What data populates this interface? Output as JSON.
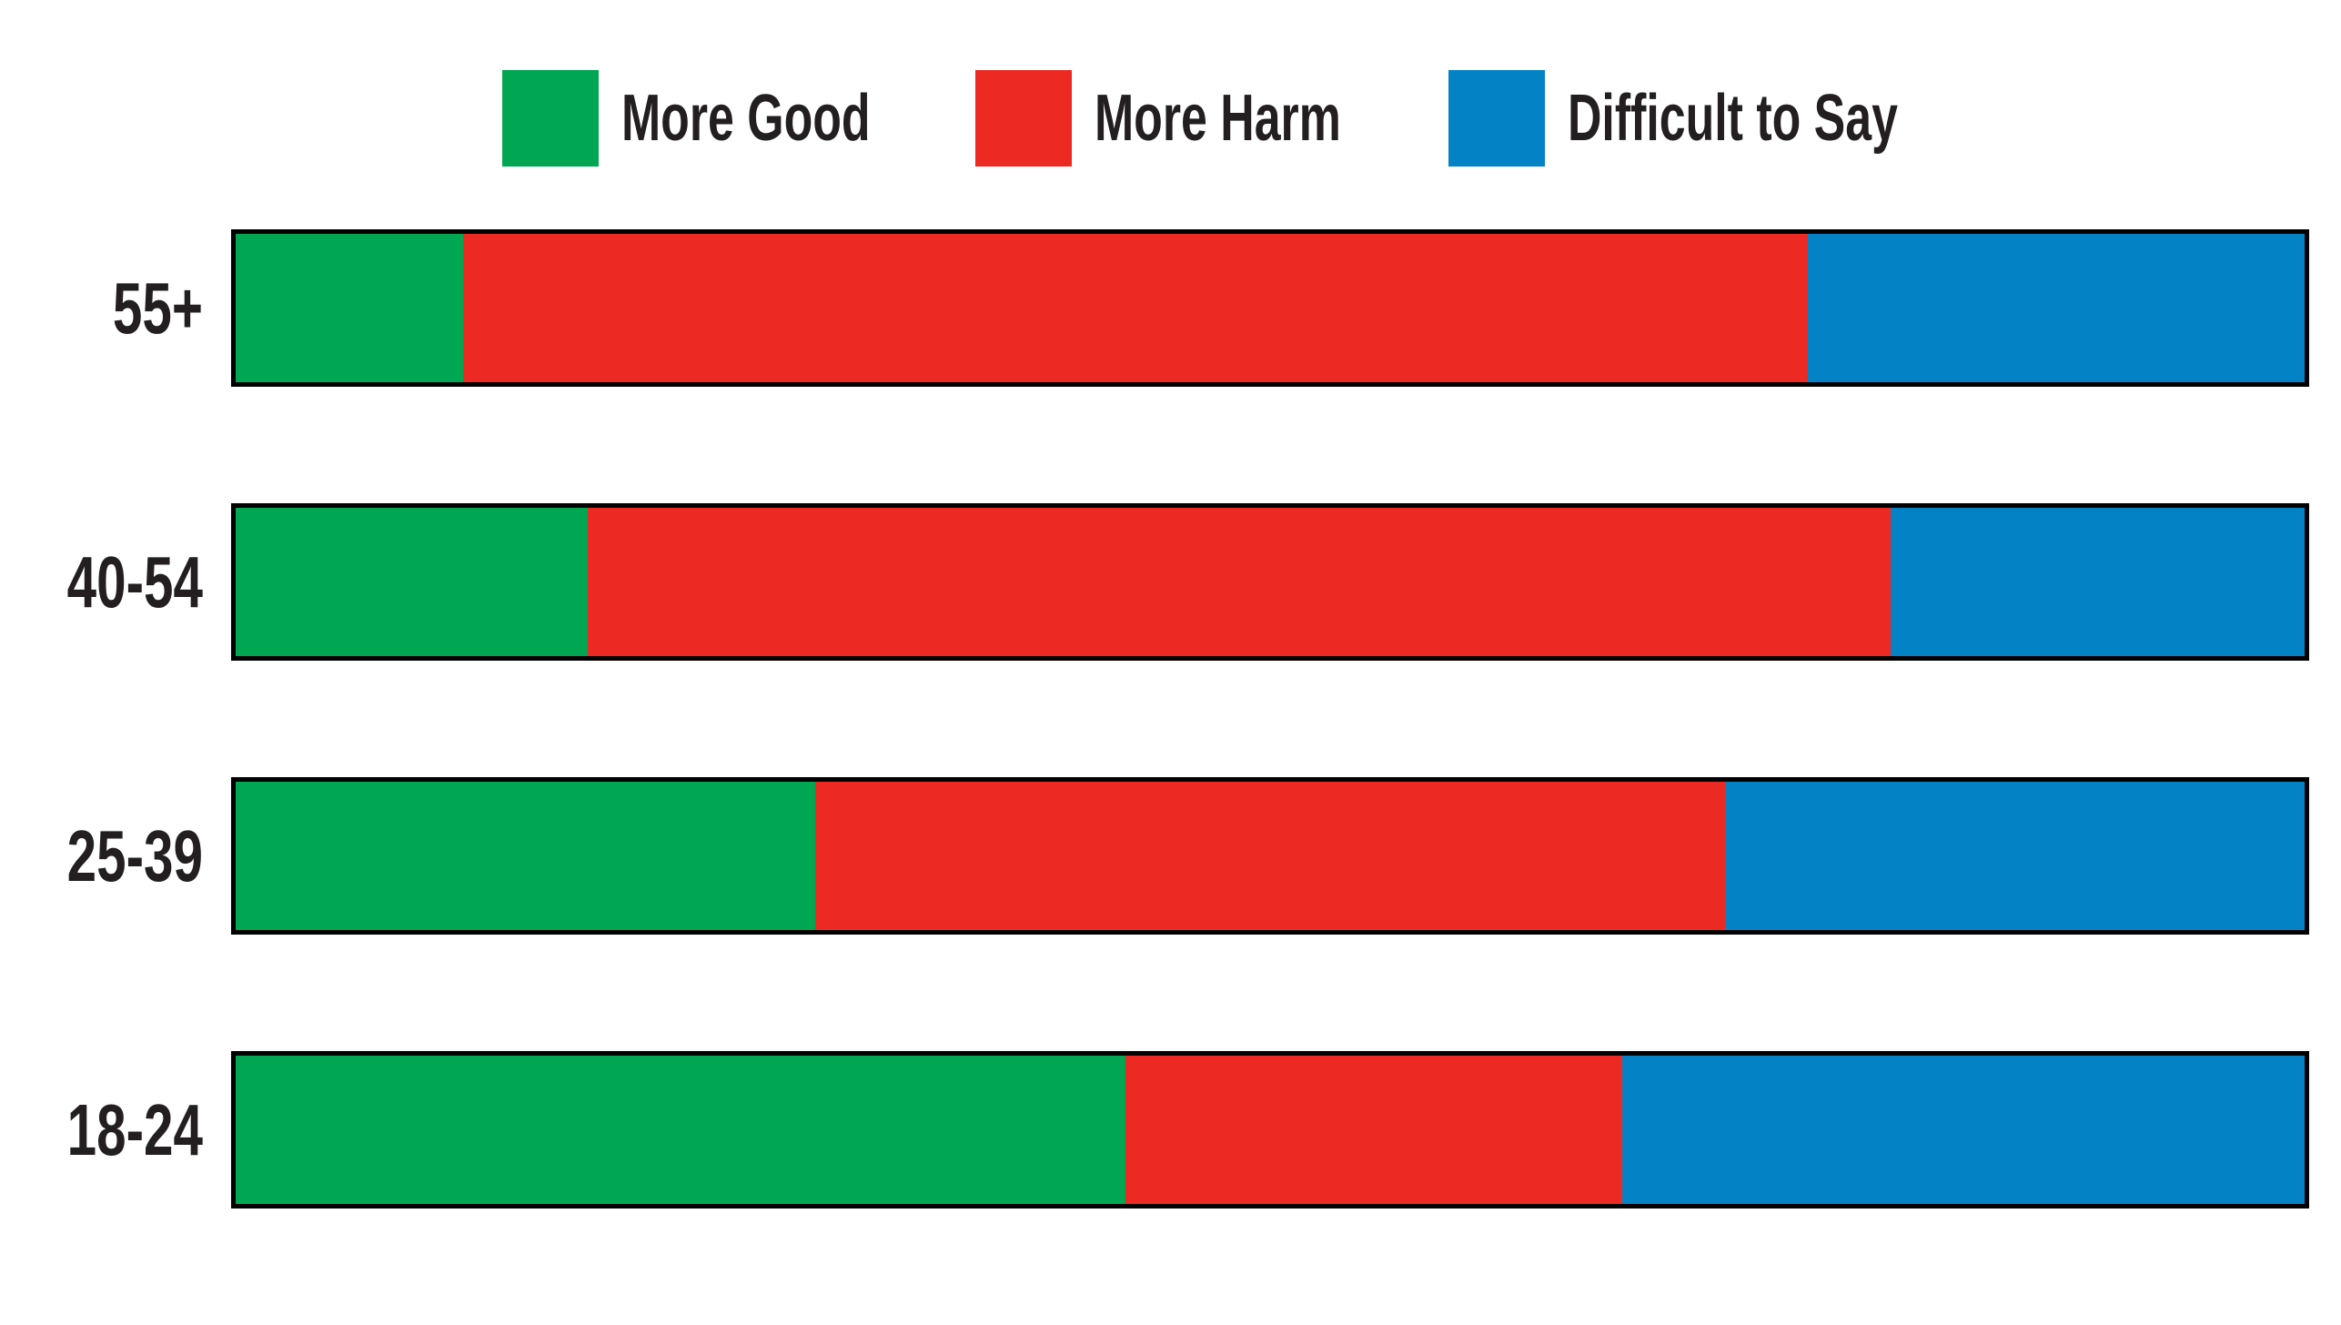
{
  "chart_data": {
    "type": "bar",
    "orientation": "horizontal_stacked",
    "title": "",
    "xlabel": "",
    "ylabel": "",
    "xlim": [
      0,
      100
    ],
    "values_unit": "percent_of_bar",
    "grid": false,
    "legend_position": "top",
    "bar_outline_color": "#000000",
    "categories": [
      "55+",
      "40-54",
      "25-39",
      "18-24"
    ],
    "series": [
      {
        "name": "More Good",
        "color": "#00A651",
        "values": [
          11,
          17,
          28,
          43
        ]
      },
      {
        "name": "More Harm",
        "color": "#ED2924",
        "values": [
          65,
          63,
          44,
          24
        ]
      },
      {
        "name": "Difficult to Say",
        "color": "#0482C6",
        "values": [
          24,
          20,
          28,
          33
        ]
      }
    ]
  }
}
